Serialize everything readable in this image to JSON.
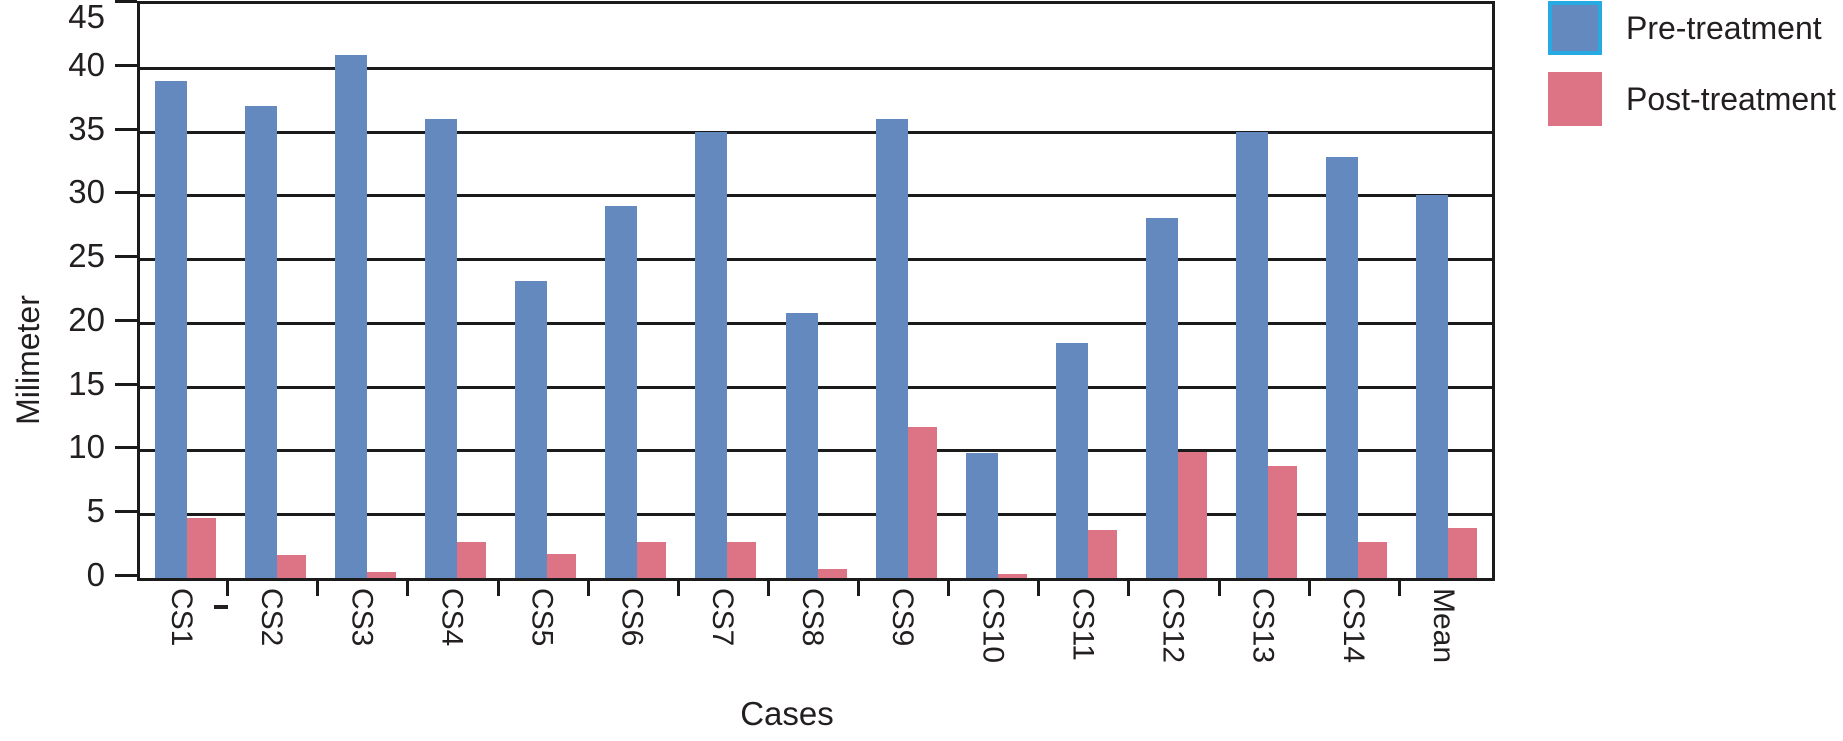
{
  "figure": {
    "background": "#FFFFFF"
  },
  "chart_data": {
    "type": "bar",
    "title": "",
    "xlabel": "Cases",
    "ylabel": "Milimeter",
    "ylim": [
      0,
      45
    ],
    "ytick_step": 5,
    "yticks": [
      0,
      5,
      10,
      15,
      20,
      25,
      30,
      35,
      40,
      45
    ],
    "grid": "horizontal",
    "legend_position": "top-right",
    "categories": [
      "CS1",
      "CS2",
      "CS3",
      "CS4",
      "CS5",
      "CS6",
      "CS7",
      "CS8",
      "CS9",
      "CS10",
      "CS11",
      "CS12",
      "CS13",
      "CS14",
      "Mean"
    ],
    "series": [
      {
        "name": "Pre-treatment",
        "color": "#6389BE",
        "values": [
          39,
          37,
          41,
          36,
          23.3,
          29.2,
          35,
          20.8,
          36,
          9.8,
          18.4,
          28.2,
          35,
          33,
          30
        ]
      },
      {
        "name": "Post-treatment",
        "color": "#DC7486",
        "values": [
          4.7,
          1.8,
          0.5,
          2.8,
          1.9,
          2.8,
          2.8,
          0.7,
          11.8,
          0.3,
          3.8,
          9.9,
          8.8,
          2.8,
          3.9
        ]
      }
    ],
    "legend": [
      {
        "label": "Pre-treatment",
        "swatch_color": "#6389BE",
        "swatch_border": "#27AAE1"
      },
      {
        "label": "Post-treatment",
        "swatch_color": "#DC7486",
        "swatch_border": ""
      }
    ],
    "annotations": [
      {
        "type": "stray-dash",
        "text": "-",
        "near": "CS1"
      }
    ]
  },
  "colors": {
    "axis": "#1B1B1B",
    "text": "#231F20",
    "legend_blue_border": "#27AAE1"
  }
}
